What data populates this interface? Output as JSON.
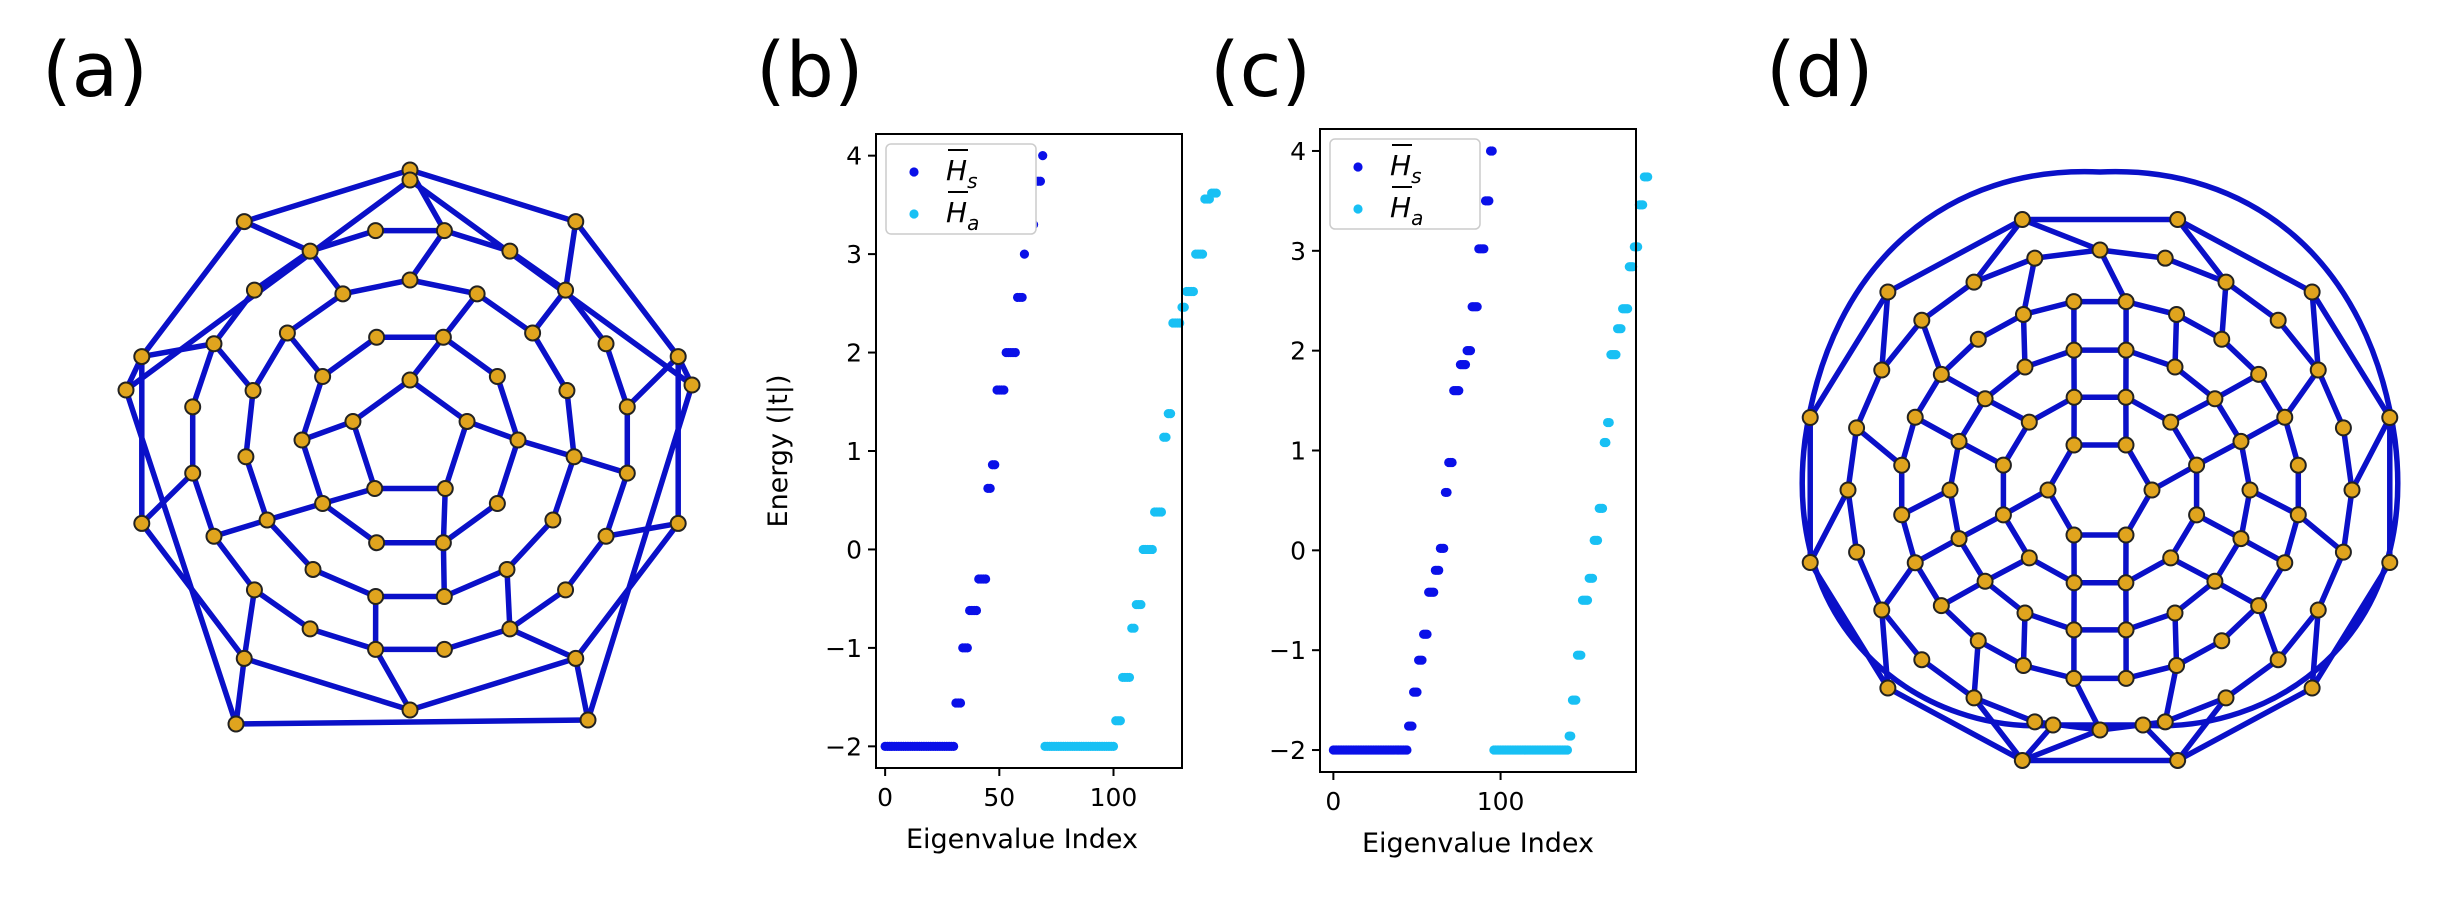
{
  "panel_labels": {
    "a": "(a)",
    "b": "(b)",
    "c": "(c)",
    "d": "(d)"
  },
  "colors": {
    "edge": "#0a10c8",
    "node_fill": "#e0a41e",
    "node_stroke": "#222222",
    "series_s": "#0a10e8",
    "series_a": "#18c0f4"
  },
  "chart_data": [
    {
      "type": "scatter",
      "panel": "(b)",
      "xlabel": "Eigenvalue Index",
      "ylabel": "Energy (|t|)",
      "xlim": [
        -4,
        130
      ],
      "ylim": [
        -2.22,
        4.22
      ],
      "xticks": [
        "0",
        "50",
        "100"
      ],
      "yticks": [
        "−2",
        "−1",
        "0",
        "1",
        "2",
        "3",
        "4"
      ],
      "legend_position": "top-left",
      "series": [
        {
          "name": "H̄s",
          "legend_base": "H",
          "legend_sub": "s",
          "levels": [
            [
              -2,
              31
            ],
            [
              -1.56,
              3
            ],
            [
              -1,
              3
            ],
            [
              -0.62,
              4
            ],
            [
              -0.3,
              4
            ],
            [
              0.62,
              2
            ],
            [
              0.86,
              2
            ],
            [
              1.62,
              4
            ],
            [
              2,
              5
            ],
            [
              2.56,
              3
            ],
            [
              3,
              1
            ],
            [
              3.3,
              4
            ],
            [
              3.74,
              3
            ],
            [
              4,
              1
            ]
          ]
        },
        {
          "name": "H̄a",
          "legend_base": "H",
          "legend_sub": "a",
          "levels": [
            [
              -2,
              31
            ],
            [
              -1.74,
              3
            ],
            [
              -1.3,
              4
            ],
            [
              -0.8,
              2
            ],
            [
              -0.56,
              3
            ],
            [
              0,
              5
            ],
            [
              0.38,
              4
            ],
            [
              1.14,
              2
            ],
            [
              1.38,
              2
            ],
            [
              2.3,
              4
            ],
            [
              2.46,
              2
            ],
            [
              2.62,
              4
            ],
            [
              3,
              4
            ],
            [
              3.56,
              3
            ],
            [
              3.62,
              3
            ]
          ]
        }
      ]
    },
    {
      "type": "scatter",
      "panel": "(c)",
      "xlabel": "Eigenvalue Index",
      "ylabel": "",
      "xlim": [
        -8,
        181
      ],
      "ylim": [
        -2.22,
        4.22
      ],
      "xticks": [
        "0",
        "100"
      ],
      "yticks": [
        "−2",
        "−1",
        "0",
        "1",
        "2",
        "3",
        "4"
      ],
      "legend_position": "top-left",
      "series": [
        {
          "name": "H̄s",
          "legend_base": "H",
          "legend_sub": "s",
          "levels": [
            [
              -2,
              45
            ],
            [
              -1.76,
              3
            ],
            [
              -1.42,
              3
            ],
            [
              -1.1,
              3
            ],
            [
              -0.84,
              3
            ],
            [
              -0.42,
              4
            ],
            [
              -0.2,
              3
            ],
            [
              0.02,
              3
            ],
            [
              0.58,
              2
            ],
            [
              0.88,
              3
            ],
            [
              1.6,
              4
            ],
            [
              1.86,
              4
            ],
            [
              2,
              3
            ],
            [
              2.44,
              4
            ],
            [
              3.02,
              4
            ],
            [
              3.5,
              3
            ],
            [
              4,
              2
            ]
          ]
        },
        {
          "name": "H̄a",
          "legend_base": "H",
          "legend_sub": "a",
          "levels": [
            [
              -2,
              45
            ],
            [
              -1.86,
              2
            ],
            [
              -1.5,
              3
            ],
            [
              -1.05,
              3
            ],
            [
              -0.5,
              4
            ],
            [
              -0.28,
              3
            ],
            [
              0.1,
              3
            ],
            [
              0.42,
              3
            ],
            [
              1.08,
              2
            ],
            [
              1.28,
              2
            ],
            [
              1.96,
              4
            ],
            [
              2.22,
              3
            ],
            [
              2.42,
              4
            ],
            [
              2.84,
              3
            ],
            [
              3.04,
              3
            ],
            [
              3.46,
              3
            ],
            [
              3.74,
              3
            ]
          ]
        }
      ]
    }
  ]
}
